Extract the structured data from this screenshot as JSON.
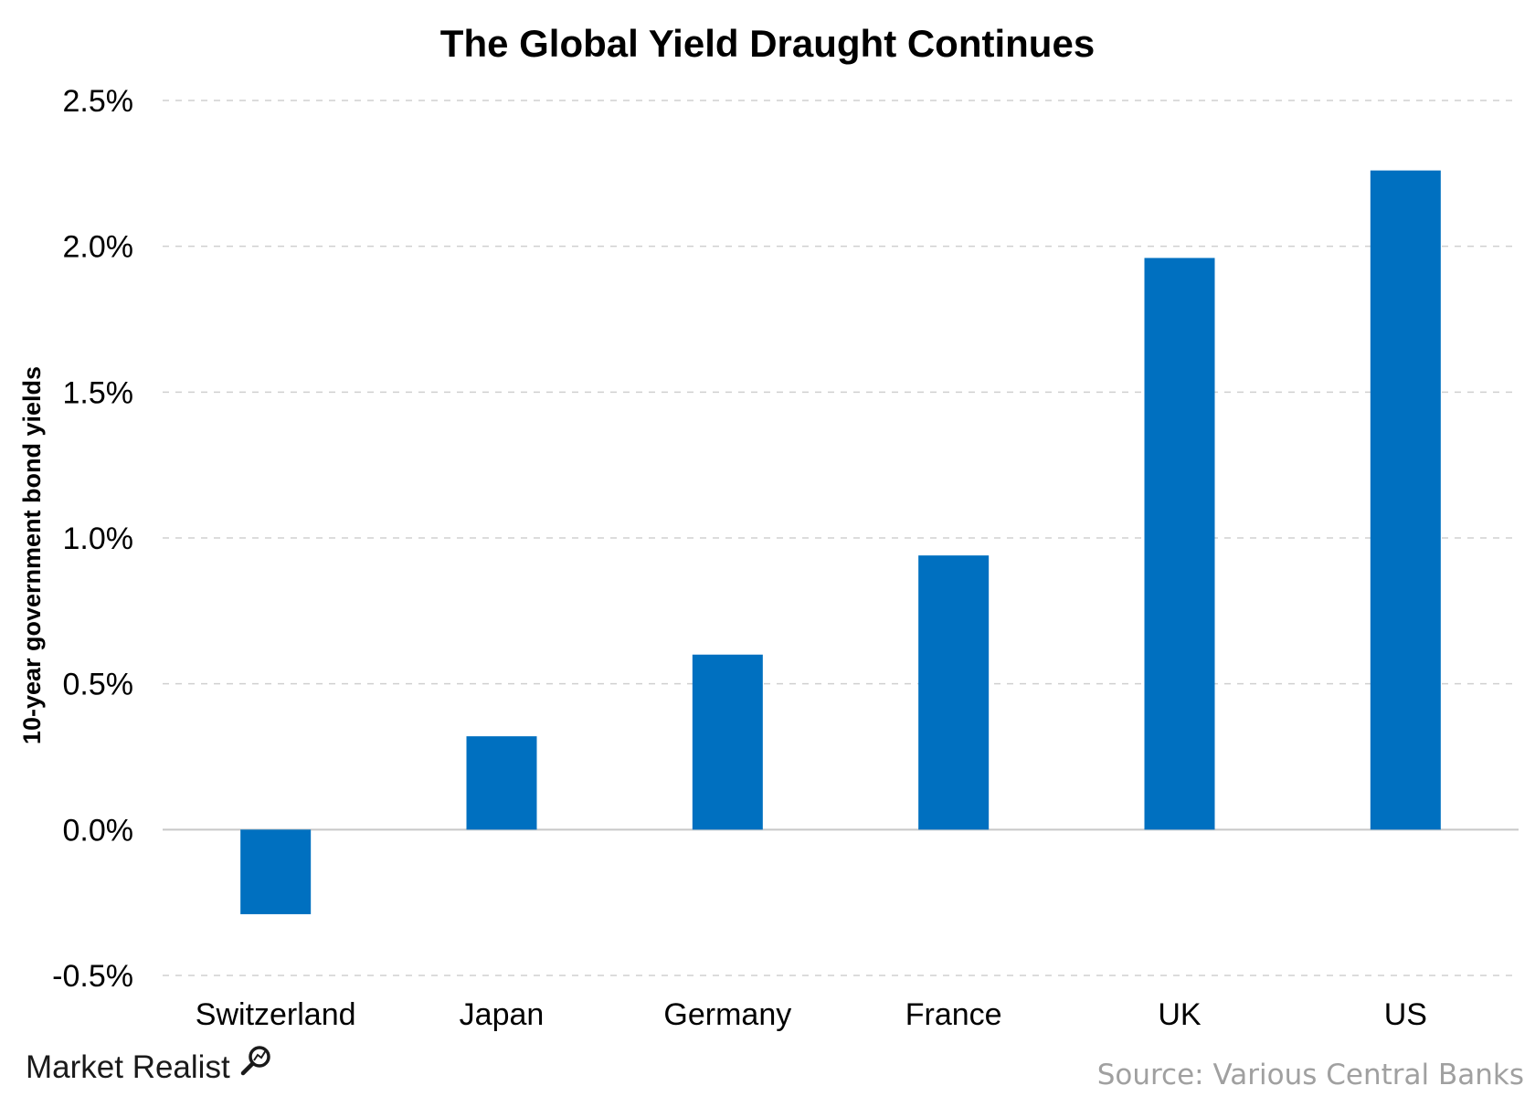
{
  "chart_data": {
    "type": "bar",
    "title": "The Global Yield Draught Continues",
    "ylabel": "10-year government bond yields",
    "xlabel": "",
    "categories": [
      "Switzerland",
      "Japan",
      "Germany",
      "France",
      "UK",
      "US"
    ],
    "values": [
      -0.29,
      0.32,
      0.6,
      0.94,
      1.96,
      2.26
    ],
    "ylim": [
      -0.5,
      2.5
    ],
    "yticks": [
      2.5,
      2.0,
      1.5,
      1.0,
      0.5,
      0.0,
      -0.5
    ],
    "ytick_labels": [
      "2.5%",
      "2.0%",
      "1.5%",
      "1.0%",
      "0.5%",
      "0.0%",
      "-0.5%"
    ],
    "grid": true,
    "bar_color": "#0070C0"
  },
  "branding": {
    "logo_text": "Market Realist",
    "source": "Source: Various Central Banks"
  }
}
